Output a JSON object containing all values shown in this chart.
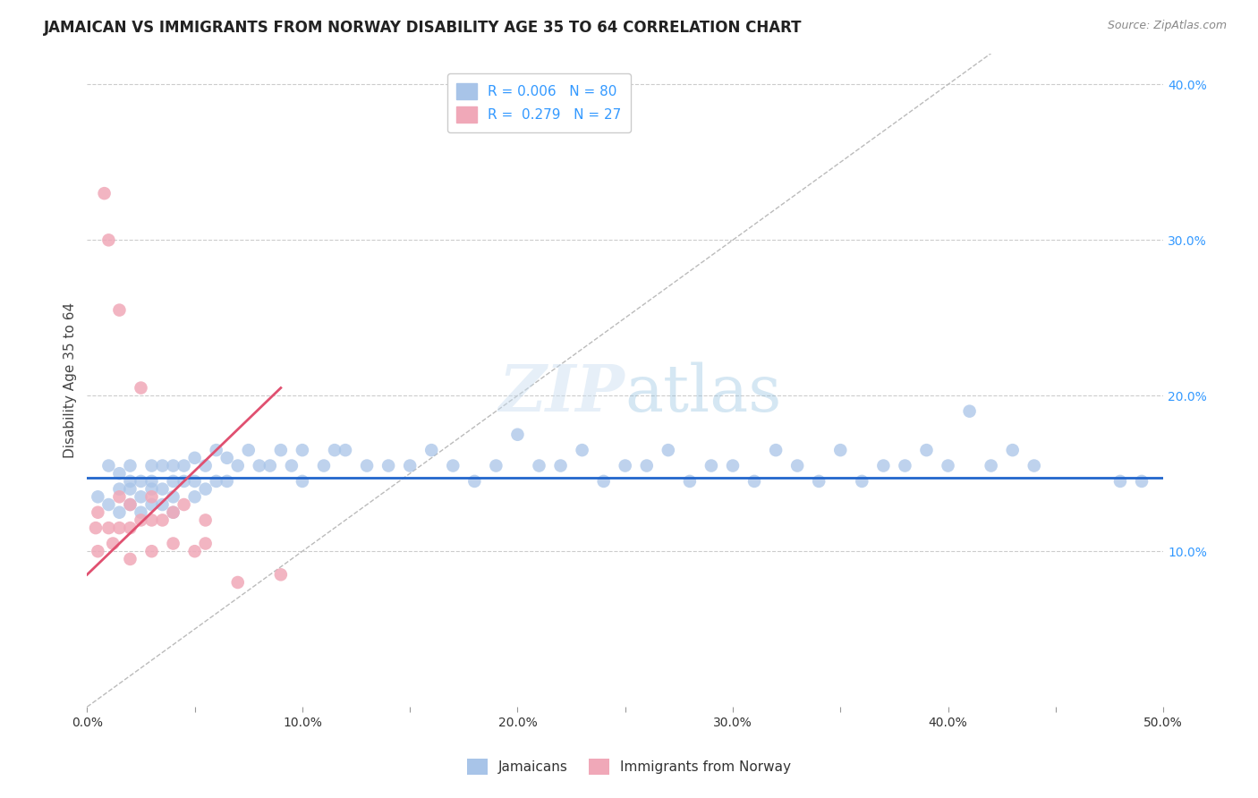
{
  "title": "JAMAICAN VS IMMIGRANTS FROM NORWAY DISABILITY AGE 35 TO 64 CORRELATION CHART",
  "source_text": "Source: ZipAtlas.com",
  "ylabel": "Disability Age 35 to 64",
  "xlim": [
    0.0,
    0.5
  ],
  "ylim": [
    0.0,
    0.42
  ],
  "background_color": "#ffffff",
  "grid_color": "#cccccc",
  "watermark_text": "ZIPatlas",
  "blue_scatter_x": [
    0.005,
    0.01,
    0.01,
    0.015,
    0.015,
    0.015,
    0.02,
    0.02,
    0.02,
    0.02,
    0.025,
    0.025,
    0.025,
    0.03,
    0.03,
    0.03,
    0.03,
    0.035,
    0.035,
    0.035,
    0.04,
    0.04,
    0.04,
    0.04,
    0.045,
    0.045,
    0.05,
    0.05,
    0.05,
    0.055,
    0.055,
    0.06,
    0.06,
    0.065,
    0.065,
    0.07,
    0.075,
    0.08,
    0.085,
    0.09,
    0.095,
    0.1,
    0.1,
    0.11,
    0.115,
    0.12,
    0.13,
    0.14,
    0.15,
    0.16,
    0.17,
    0.18,
    0.19,
    0.2,
    0.21,
    0.22,
    0.23,
    0.24,
    0.25,
    0.26,
    0.27,
    0.28,
    0.29,
    0.3,
    0.31,
    0.32,
    0.33,
    0.34,
    0.35,
    0.36,
    0.37,
    0.38,
    0.39,
    0.4,
    0.41,
    0.42,
    0.43,
    0.44,
    0.48,
    0.49
  ],
  "blue_scatter_y": [
    0.135,
    0.155,
    0.13,
    0.14,
    0.15,
    0.125,
    0.14,
    0.145,
    0.13,
    0.155,
    0.145,
    0.135,
    0.125,
    0.155,
    0.145,
    0.14,
    0.13,
    0.155,
    0.14,
    0.13,
    0.155,
    0.145,
    0.135,
    0.125,
    0.155,
    0.145,
    0.16,
    0.145,
    0.135,
    0.155,
    0.14,
    0.165,
    0.145,
    0.16,
    0.145,
    0.155,
    0.165,
    0.155,
    0.155,
    0.165,
    0.155,
    0.165,
    0.145,
    0.155,
    0.165,
    0.165,
    0.155,
    0.155,
    0.155,
    0.165,
    0.155,
    0.145,
    0.155,
    0.175,
    0.155,
    0.155,
    0.165,
    0.145,
    0.155,
    0.155,
    0.165,
    0.145,
    0.155,
    0.155,
    0.145,
    0.165,
    0.155,
    0.145,
    0.165,
    0.145,
    0.155,
    0.155,
    0.165,
    0.155,
    0.19,
    0.155,
    0.165,
    0.155,
    0.145,
    0.145
  ],
  "pink_scatter_x": [
    0.004,
    0.005,
    0.005,
    0.008,
    0.01,
    0.01,
    0.012,
    0.015,
    0.015,
    0.015,
    0.02,
    0.02,
    0.02,
    0.025,
    0.025,
    0.03,
    0.03,
    0.03,
    0.035,
    0.04,
    0.04,
    0.045,
    0.05,
    0.055,
    0.055,
    0.07,
    0.09
  ],
  "pink_scatter_y": [
    0.115,
    0.125,
    0.1,
    0.33,
    0.3,
    0.115,
    0.105,
    0.255,
    0.135,
    0.115,
    0.13,
    0.115,
    0.095,
    0.205,
    0.12,
    0.135,
    0.12,
    0.1,
    0.12,
    0.125,
    0.105,
    0.13,
    0.1,
    0.12,
    0.105,
    0.08,
    0.085
  ],
  "blue_line_x": [
    0.0,
    0.5
  ],
  "blue_line_y": [
    0.147,
    0.147
  ],
  "pink_line_x": [
    0.0,
    0.09
  ],
  "pink_line_y": [
    0.085,
    0.205
  ],
  "diag_line_x": [
    0.0,
    0.42
  ],
  "diag_line_y": [
    0.0,
    0.42
  ]
}
